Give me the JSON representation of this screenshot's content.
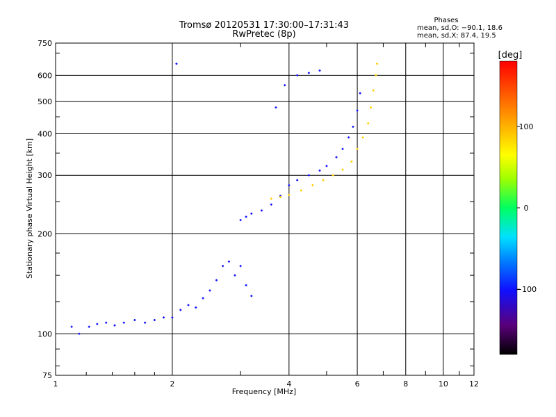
{
  "chart_data": {
    "type": "scatter",
    "title": "Tromsø 20120531 17:30:00–17:31:43",
    "subtitle": "RwPretec (8p)",
    "xlabel": "Frequency [MHz]",
    "ylabel": "Stationary phase Virtual Height [km]",
    "xscale": "log",
    "yscale": "log",
    "xlim": [
      1,
      12
    ],
    "ylim": [
      75,
      750
    ],
    "xticks": [
      1,
      2,
      4,
      6,
      8,
      10,
      12
    ],
    "xtick_labels": [
      "1",
      "2",
      "4",
      "6",
      "8",
      "10",
      "12"
    ],
    "yticks": [
      75,
      100,
      200,
      300,
      400,
      500,
      600,
      750
    ],
    "ytick_labels": [
      "75",
      "100",
      "200",
      "300",
      "400",
      "500",
      "600",
      "750"
    ],
    "grid": true,
    "phases_box": {
      "title": "Phases",
      "line1": "mean, sd,O: −90.1, 18.6",
      "line2": "mean, sd,X:  87.4, 19.5"
    },
    "colorbar": {
      "label": "[deg]",
      "range": [
        -180,
        180
      ],
      "ticks": [
        100,
        0,
        -100
      ],
      "tick_labels": [
        "100",
        "0",
        "−100"
      ]
    },
    "series": [
      {
        "name": "O",
        "color_phase": -100,
        "points": [
          [
            1.1,
            105
          ],
          [
            1.15,
            100
          ],
          [
            1.22,
            105
          ],
          [
            1.28,
            107
          ],
          [
            1.35,
            108
          ],
          [
            1.42,
            106
          ],
          [
            1.5,
            108
          ],
          [
            1.6,
            110
          ],
          [
            1.7,
            108
          ],
          [
            1.8,
            110
          ],
          [
            1.9,
            112
          ],
          [
            2.0,
            112
          ],
          [
            2.1,
            118
          ],
          [
            2.2,
            122
          ],
          [
            2.3,
            120
          ],
          [
            2.4,
            128
          ],
          [
            2.5,
            135
          ],
          [
            2.6,
            145
          ],
          [
            2.7,
            160
          ],
          [
            2.8,
            165
          ],
          [
            2.9,
            150
          ],
          [
            3.0,
            160
          ],
          [
            3.1,
            140
          ],
          [
            3.2,
            130
          ],
          [
            2.05,
            650
          ],
          [
            3.0,
            220
          ],
          [
            3.1,
            225
          ],
          [
            3.2,
            230
          ],
          [
            3.4,
            235
          ],
          [
            3.6,
            245
          ],
          [
            3.8,
            260
          ],
          [
            4.0,
            280
          ],
          [
            4.2,
            290
          ],
          [
            4.5,
            300
          ],
          [
            4.8,
            310
          ],
          [
            5.0,
            320
          ],
          [
            5.3,
            340
          ],
          [
            5.5,
            360
          ],
          [
            5.7,
            390
          ],
          [
            5.85,
            420
          ],
          [
            6.0,
            470
          ],
          [
            6.1,
            530
          ],
          [
            3.7,
            480
          ],
          [
            3.9,
            560
          ],
          [
            4.2,
            600
          ],
          [
            4.5,
            610
          ],
          [
            4.8,
            620
          ]
        ]
      },
      {
        "name": "X",
        "color_phase": 87,
        "points": [
          [
            3.6,
            255
          ],
          [
            3.8,
            258
          ],
          [
            4.0,
            262
          ],
          [
            4.3,
            270
          ],
          [
            4.6,
            280
          ],
          [
            4.9,
            290
          ],
          [
            5.2,
            300
          ],
          [
            5.5,
            312
          ],
          [
            5.8,
            330
          ],
          [
            6.0,
            360
          ],
          [
            6.2,
            390
          ],
          [
            6.4,
            430
          ],
          [
            6.5,
            480
          ],
          [
            6.6,
            540
          ],
          [
            6.7,
            600
          ],
          [
            6.75,
            650
          ]
        ]
      }
    ]
  }
}
